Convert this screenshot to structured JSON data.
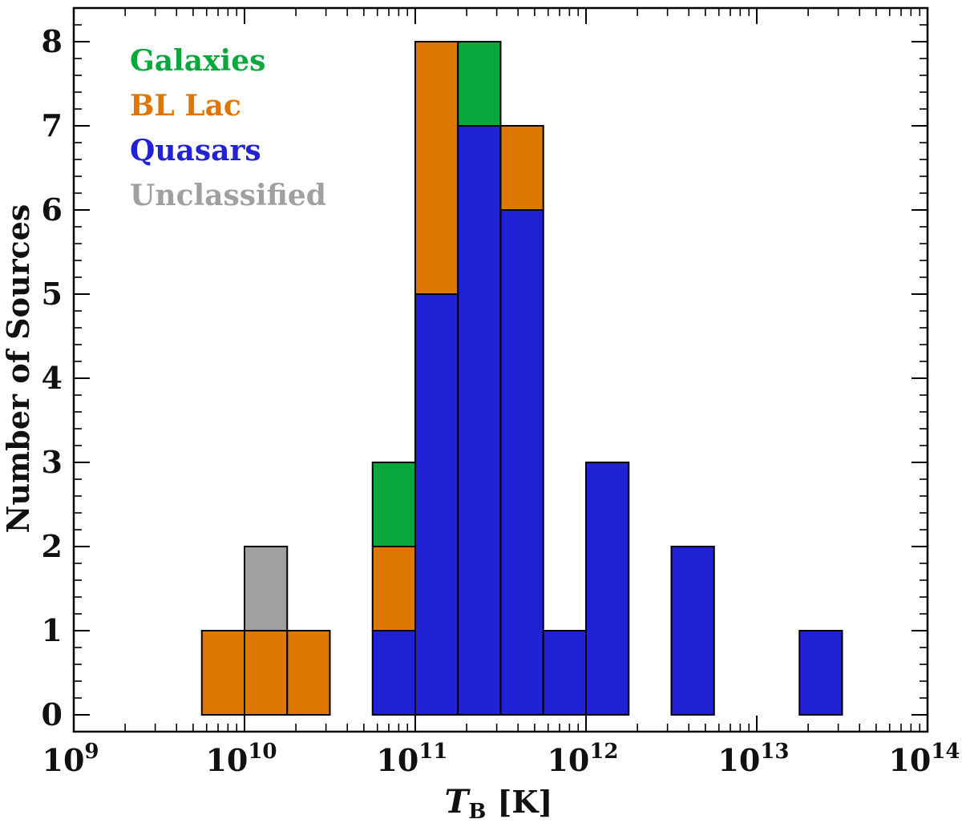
{
  "chart_data": {
    "type": "bar",
    "subtype": "stacked-histogram",
    "title": "",
    "xlabel_symbol": "T",
    "xlabel_subscript": "B",
    "xlabel_unit": "[K]",
    "ylabel": "Number of Sources",
    "x_scale": "log10",
    "xlim_exponents": [
      9,
      14
    ],
    "xtick_exponents": [
      9,
      10,
      11,
      12,
      13,
      14
    ],
    "xtick_base": "10",
    "ylim": [
      -0.2,
      8.4
    ],
    "yticks": [
      "0",
      "1",
      "2",
      "3",
      "4",
      "5",
      "6",
      "7",
      "8"
    ],
    "bin_width_log10": 0.25,
    "categories_log10_bin_start": [
      9.75,
      10.0,
      10.25,
      10.75,
      11.0,
      11.25,
      11.5,
      11.75,
      12.0,
      12.5,
      13.25
    ],
    "series": [
      {
        "name": "Quasars",
        "color": "#2121d6",
        "values": [
          0,
          0,
          0,
          1,
          5,
          7,
          6,
          1,
          3,
          2,
          1
        ]
      },
      {
        "name": "BL Lac",
        "color": "#dd7700",
        "values": [
          1,
          1,
          1,
          1,
          3,
          0,
          1,
          0,
          0,
          0,
          0
        ]
      },
      {
        "name": "Galaxies",
        "color": "#0aa83c",
        "values": [
          0,
          0,
          0,
          1,
          0,
          1,
          0,
          0,
          0,
          0,
          0
        ]
      },
      {
        "name": "Unclassified",
        "color": "#a0a0a0",
        "values": [
          0,
          1,
          0,
          0,
          0,
          0,
          0,
          0,
          0,
          0,
          0
        ]
      }
    ],
    "legend_order": [
      "Galaxies",
      "BL Lac",
      "Quasars",
      "Unclassified"
    ],
    "legend_position": "top-left"
  }
}
